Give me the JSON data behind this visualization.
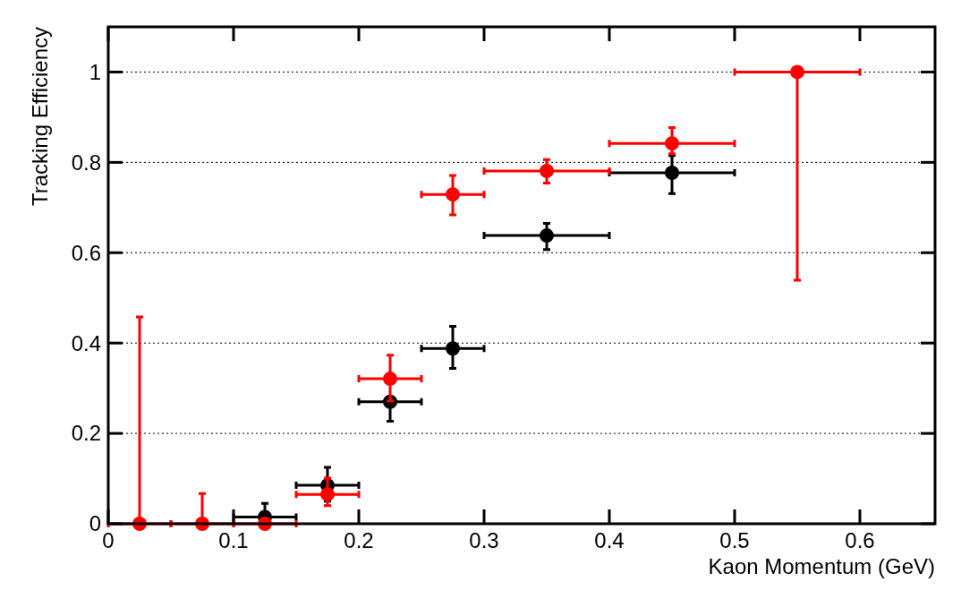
{
  "chart_data": {
    "type": "scatter",
    "xlabel": "Kaon Momentum (GeV)",
    "ylabel": "Tracking Efficiency",
    "xlim": [
      0,
      0.66
    ],
    "ylim": [
      0,
      1.1
    ],
    "xticks": [
      0,
      0.1,
      0.2,
      0.3,
      0.4,
      0.5,
      0.6
    ],
    "yticks": [
      0,
      0.2,
      0.4,
      0.6,
      0.8,
      1
    ],
    "grid": "y",
    "marker": "circle",
    "series": [
      {
        "color": "#000000",
        "x": [
          0.125,
          0.175,
          0.225,
          0.275,
          0.35,
          0.45
        ],
        "values": [
          0.015,
          0.085,
          0.27,
          0.388,
          0.638,
          0.777
        ],
        "errors": [
          [
            0,
            0.045
          ],
          [
            0.05,
            0.125
          ],
          [
            0.227,
            0.27
          ],
          [
            0.344,
            0.437
          ],
          [
            0.607,
            0.665
          ],
          [
            0.731,
            0.815
          ]
        ],
        "xerrors": [
          0.025,
          0.025,
          0.025,
          0.025,
          0.05,
          0.05
        ]
      },
      {
        "color": "#ff0000",
        "x": [
          0.025,
          0.075,
          0.125,
          0.175,
          0.225,
          0.275,
          0.35,
          0.45,
          0.55
        ],
        "values": [
          0,
          0,
          0,
          0.065,
          0.321,
          0.729,
          0.781,
          0.842,
          1
        ],
        "errors": [
          [
            0,
            0.458
          ],
          [
            0,
            0.067
          ],
          null,
          [
            0.04,
            0.101
          ],
          [
            0.272,
            0.373
          ],
          [
            0.684,
            0.771
          ],
          [
            0.754,
            0.806
          ],
          [
            0.819,
            0.877
          ],
          [
            0.539,
            1
          ]
        ],
        "xerrors": [
          0.025,
          0.025,
          0.025,
          0.025,
          0.025,
          0.025,
          0.05,
          0.05,
          0.05
        ]
      }
    ]
  }
}
